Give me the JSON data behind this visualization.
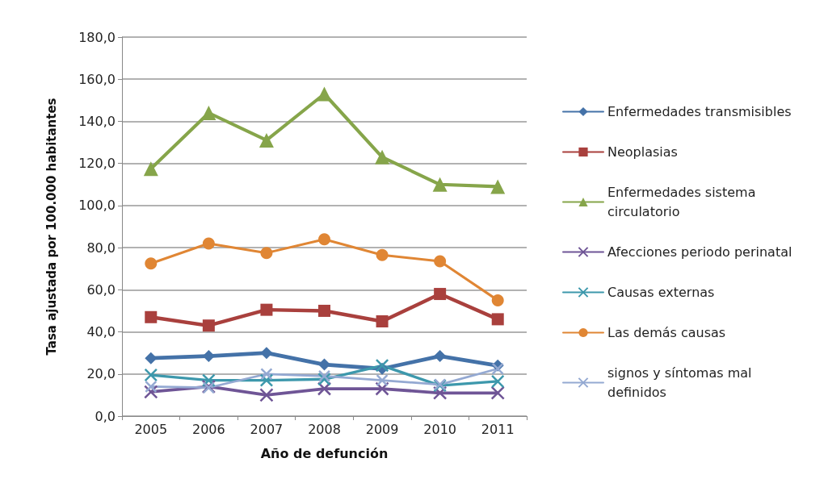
{
  "chart_data": {
    "type": "line",
    "xlabel": "Año de defunción",
    "ylabel": "Tasa ajustada por 100.000 habitantes",
    "categories": [
      "2005",
      "2006",
      "2007",
      "2008",
      "2009",
      "2010",
      "2011"
    ],
    "ylim": [
      0,
      180
    ],
    "yticks": [
      {
        "value": 0,
        "label": "0,0"
      },
      {
        "value": 20,
        "label": "20,0"
      },
      {
        "value": 40,
        "label": "40,0"
      },
      {
        "value": 60,
        "label": "60,0"
      },
      {
        "value": 80,
        "label": "80,0"
      },
      {
        "value": 100,
        "label": "100,0"
      },
      {
        "value": 120,
        "label": "120,0"
      },
      {
        "value": 140,
        "label": "140,0"
      },
      {
        "value": 160,
        "label": "160,0"
      },
      {
        "value": 180,
        "label": "180,0"
      }
    ],
    "grid": "y",
    "legend": "right",
    "line_style": "solid",
    "series": [
      {
        "name": "Enfermedades transmisibles",
        "color": "#4472a8",
        "marker": "diamond",
        "values": [
          27.5,
          28.5,
          30,
          24.5,
          22.5,
          28.5,
          24
        ]
      },
      {
        "name": "Neoplasias",
        "color": "#a9403d",
        "marker": "square",
        "values": [
          47,
          43,
          50.5,
          50,
          45,
          58,
          46
        ]
      },
      {
        "name": "Enfermedades sistema circulatorio",
        "color": "#86a54a",
        "marker": "triangle",
        "values": [
          117.5,
          144,
          131,
          153,
          123,
          110,
          109
        ]
      },
      {
        "name": "Afecciones periodo perinatal",
        "color": "#6f5596",
        "marker": "cross",
        "values": [
          11.5,
          14,
          10,
          13,
          13,
          11,
          11
        ]
      },
      {
        "name": "Causas externas",
        "color": "#3d98ac",
        "marker": "cross",
        "values": [
          19.5,
          17,
          17,
          17.5,
          24,
          14.5,
          16.5
        ]
      },
      {
        "name": "Las demás causas",
        "color": "#e08634",
        "marker": "circle",
        "values": [
          72.5,
          82,
          77.5,
          84,
          76.5,
          73.5,
          55
        ]
      },
      {
        "name": "signos y síntomas mal definidos",
        "color": "#94a9d2",
        "marker": "cross",
        "values": [
          14,
          13.5,
          20,
          19,
          17,
          15,
          22.5
        ]
      }
    ]
  }
}
